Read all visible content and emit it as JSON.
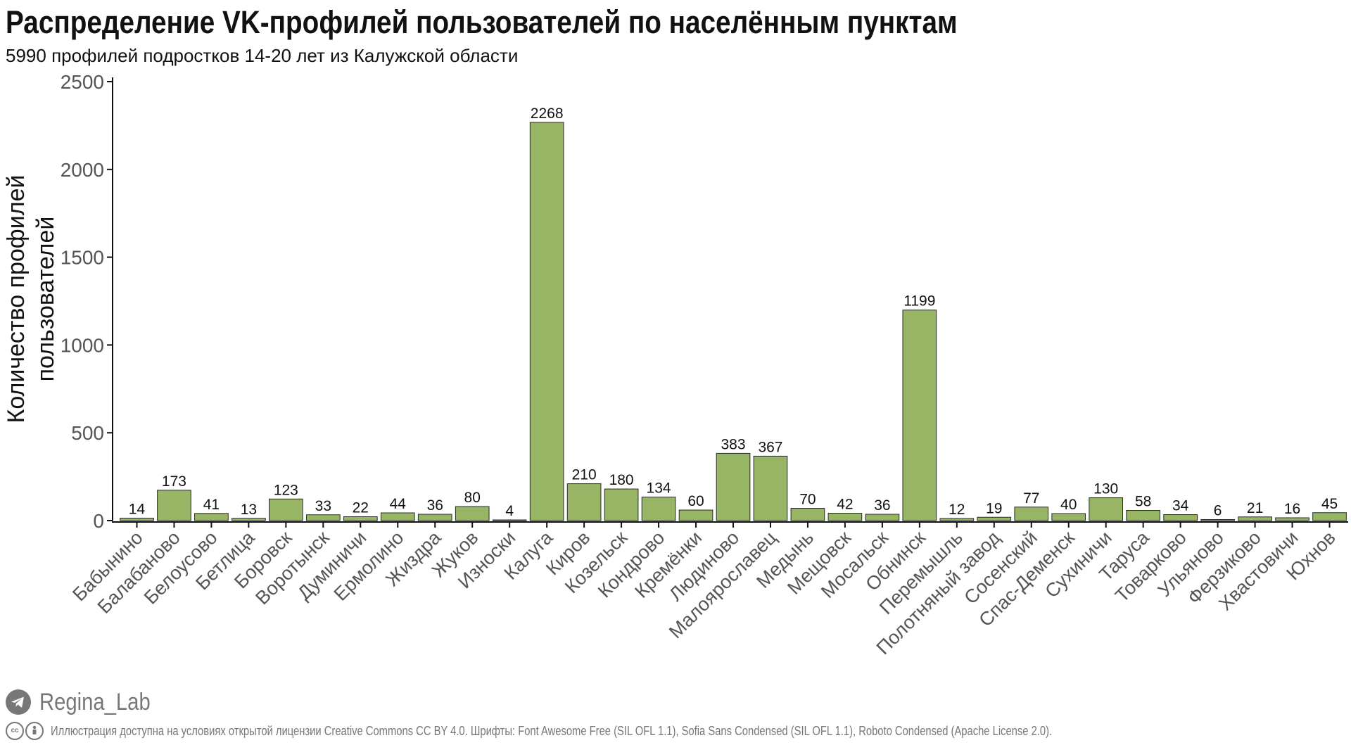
{
  "header": {
    "title": "Распределение VK-профилей пользователей по населённым пунктам",
    "subtitle": "5990 профилей подростков 14-20  лет из Калужской  области"
  },
  "footer": {
    "brand": "Regina_Lab",
    "license": "Иллюстрация доступна на  условиях открытой лицензии Creative Commons CC BY 4.0.  Шрифты: Font  Awesome Free (SIL OFL 1.1), Sofia Sans Condensed (SIL OFL 1.1), Roboto Condensed (Apache License 2.0)."
  },
  "colors": {
    "bar_fill": "#97b565",
    "bar_stroke": "#2a2a2a",
    "axis": "#111111",
    "muted": "#777777"
  },
  "chart_data": {
    "type": "bar",
    "title": "Распределение VK-профилей пользователей по населённым пунктам",
    "subtitle": "5990 профилей подростков 14-20  лет из Калужской  области",
    "xlabel": "",
    "ylabel": "Количество профилей пользователей",
    "ylabel_lines": [
      "Количество профилей",
      "пользователей"
    ],
    "ylim": [
      0,
      2500
    ],
    "yticks": [
      0,
      500,
      1000,
      1500,
      2000,
      2500
    ],
    "grid": false,
    "legend": "none",
    "categories": [
      "Бабынино",
      "Балабаново",
      "Белоусово",
      "Бетлица",
      "Боровск",
      "Воротынск",
      "Думиничи",
      "Ермолино",
      "Жиздра",
      "Жуков",
      "Износки",
      "Калуга",
      "Киров",
      "Козельск",
      "Кондрово",
      "Кремёнки",
      "Людиново",
      "Малоярославец",
      "Медынь",
      "Мещовск",
      "Мосальск",
      "Обнинск",
      "Перемышль",
      "Полотняный завод",
      "Сосенский",
      "Спас-Деменск",
      "Сухиничи",
      "Таруса",
      "Товарково",
      "Ульяново",
      "Ферзиково",
      "Хвастовичи",
      "Юхнов"
    ],
    "values": [
      14,
      173,
      41,
      13,
      123,
      33,
      22,
      44,
      36,
      80,
      4,
      2268,
      210,
      180,
      134,
      60,
      383,
      367,
      70,
      42,
      36,
      1199,
      12,
      19,
      77,
      40,
      130,
      58,
      34,
      6,
      21,
      16,
      45
    ]
  }
}
